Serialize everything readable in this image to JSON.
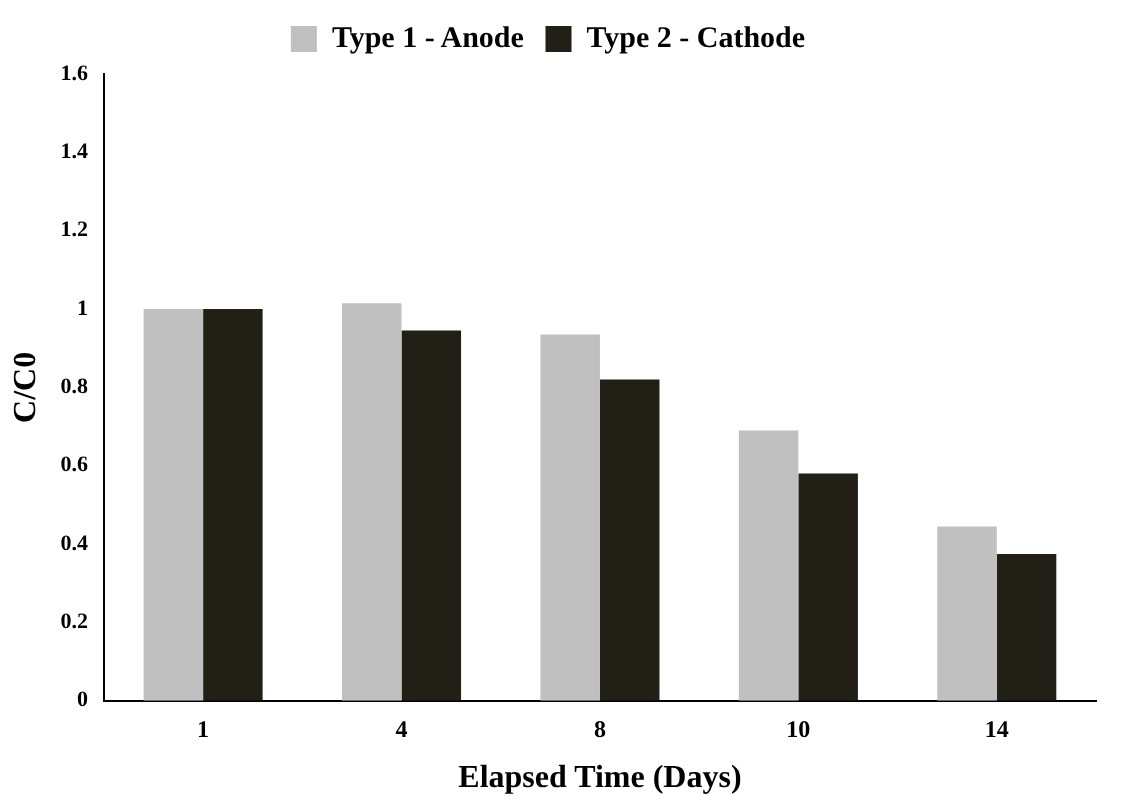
{
  "chart_data": {
    "type": "bar",
    "xlabel": "Elapsed Time (Days)",
    "ylabel": "C/C0",
    "categories": [
      "1",
      "4",
      "8",
      "10",
      "14"
    ],
    "series": [
      {
        "name": "Type 1 - Anode",
        "color": "#c0c0c0",
        "values": [
          1.0,
          1.015,
          0.935,
          0.69,
          0.445
        ]
      },
      {
        "name": "Type 2 - Cathode",
        "color": "#221f16",
        "values": [
          1.0,
          0.945,
          0.82,
          0.58,
          0.375
        ]
      }
    ],
    "ylim": [
      0,
      1.6
    ],
    "yticks": [
      0,
      0.2,
      0.4,
      0.6,
      0.8,
      1,
      1.2,
      1.4,
      1.6
    ],
    "grid": false,
    "legend": "top"
  }
}
